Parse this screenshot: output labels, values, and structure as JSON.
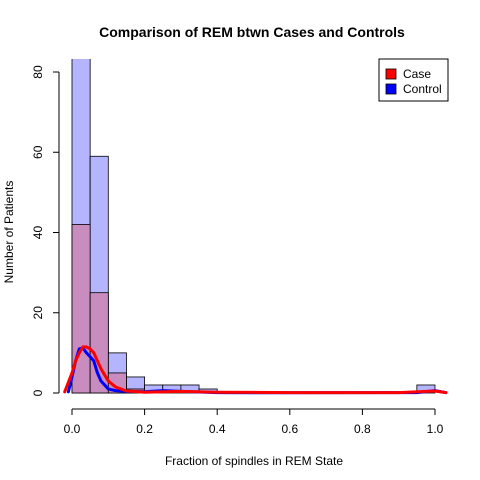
{
  "chart_data": {
    "type": "histogram",
    "title": "Comparison of REM btwn Cases and Controls",
    "xlabel": "Fraction of spindles in REM State",
    "ylabel": "Number of Patients",
    "xlim": [
      -0.04,
      1.04
    ],
    "ylim": [
      0,
      80
    ],
    "x_ticks": [
      "0.0",
      "0.2",
      "0.4",
      "0.6",
      "0.8",
      "1.0"
    ],
    "x_tick_values": [
      0,
      0.2,
      0.4,
      0.6,
      0.8,
      1.0
    ],
    "y_ticks": [
      "0",
      "20",
      "40",
      "60",
      "80"
    ],
    "y_tick_values": [
      0,
      20,
      40,
      60,
      80
    ],
    "bin_width": 0.05,
    "series": [
      {
        "name": "Control",
        "color": "#0000ff",
        "fill": "#b4b4ff",
        "bins": [
          {
            "start": 0.0,
            "count": 84
          },
          {
            "start": 0.05,
            "count": 59
          },
          {
            "start": 0.1,
            "count": 10
          },
          {
            "start": 0.15,
            "count": 4
          },
          {
            "start": 0.2,
            "count": 2
          },
          {
            "start": 0.25,
            "count": 2
          },
          {
            "start": 0.3,
            "count": 2
          },
          {
            "start": 0.35,
            "count": 1
          },
          {
            "start": 0.95,
            "count": 2
          }
        ],
        "density_curve": [
          [
            -0.01,
            0.3
          ],
          [
            0.0,
            4
          ],
          [
            0.01,
            8
          ],
          [
            0.02,
            11
          ],
          [
            0.03,
            11.2
          ],
          [
            0.04,
            10
          ],
          [
            0.05,
            9
          ],
          [
            0.06,
            8
          ],
          [
            0.07,
            5
          ],
          [
            0.08,
            3
          ],
          [
            0.1,
            1
          ],
          [
            0.12,
            0.6
          ],
          [
            0.15,
            0.4
          ],
          [
            0.2,
            0.3
          ],
          [
            0.25,
            0.6
          ],
          [
            0.3,
            0.4
          ],
          [
            0.4,
            0.1
          ],
          [
            0.5,
            0.05
          ],
          [
            0.95,
            0.1
          ],
          [
            1.0,
            0.6
          ],
          [
            1.03,
            0.1
          ]
        ]
      },
      {
        "name": "Case",
        "color": "#ff0000",
        "fill": "#c88cbe",
        "bins": [
          {
            "start": 0.0,
            "count": 42
          },
          {
            "start": 0.05,
            "count": 25
          },
          {
            "start": 0.1,
            "count": 5
          },
          {
            "start": 0.15,
            "count": 1
          }
        ],
        "density_curve": [
          [
            -0.02,
            0.3
          ],
          [
            0.0,
            5
          ],
          [
            0.01,
            8
          ],
          [
            0.02,
            10
          ],
          [
            0.03,
            11.5
          ],
          [
            0.04,
            11.5
          ],
          [
            0.05,
            11
          ],
          [
            0.06,
            10
          ],
          [
            0.07,
            8
          ],
          [
            0.08,
            6
          ],
          [
            0.1,
            3
          ],
          [
            0.12,
            1.5
          ],
          [
            0.15,
            0.5
          ],
          [
            0.2,
            0.2
          ],
          [
            0.3,
            0.4
          ],
          [
            0.4,
            0.2
          ],
          [
            0.6,
            0.1
          ],
          [
            0.9,
            0.1
          ],
          [
            1.0,
            0.5
          ],
          [
            1.03,
            0.1
          ]
        ]
      }
    ],
    "legend": {
      "position": "top-right",
      "entries": [
        {
          "label": "Case",
          "color": "#ff0000"
        },
        {
          "label": "Control",
          "color": "#0000ff"
        }
      ]
    },
    "grid": false
  }
}
